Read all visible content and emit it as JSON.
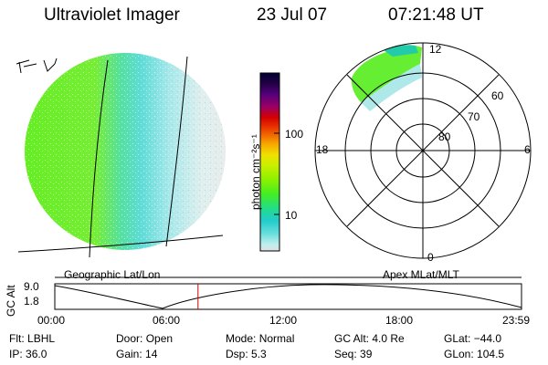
{
  "header": {
    "title": "Ultraviolet Imager",
    "date": "23 Jul 07",
    "time": "07:21:48 UT"
  },
  "left_panel": {
    "caption": "Geographic Lat/Lon",
    "annotation": "r. J"
  },
  "colorbar": {
    "unit_label": "photon cm⁻²s⁻¹",
    "ticks": [
      "100",
      "10"
    ],
    "colors": [
      "#000033",
      "#220044",
      "#55007a",
      "#9a0066",
      "#d40000",
      "#e83000",
      "#f06a00",
      "#f8a800",
      "#f0e000",
      "#c8f000",
      "#8cf000",
      "#44ee22",
      "#22dd88",
      "#22cccc",
      "#66dddd",
      "#bbeeee",
      "#e2e2e2"
    ]
  },
  "polar_panel": {
    "caption": "Apex MLat/MLT",
    "mlt_labels": {
      "top": "12",
      "bottom": "0",
      "left": "18",
      "right": "6"
    },
    "lat_labels": [
      "60",
      "70",
      "80"
    ]
  },
  "timeline": {
    "ylabel": "GC Alt",
    "y_ticks": [
      "9.0",
      "1.8"
    ],
    "x_ticks": [
      "00:00",
      "06:00",
      "12:00",
      "18:00",
      "23:59"
    ],
    "marker_time_hours": 7.36,
    "marker_color": "#cc0000"
  },
  "status": {
    "row1": [
      {
        "label": "Flt:",
        "value": "LBHL"
      },
      {
        "label": "Door:",
        "value": "Open"
      },
      {
        "label": "Mode:",
        "value": "Normal"
      },
      {
        "label": "GC Alt:",
        "value": "4.0 Re"
      },
      {
        "label": "GLat:",
        "value": "−44.0"
      }
    ],
    "row2": [
      {
        "label": "IP:",
        "value": "36.0"
      },
      {
        "label": "Gain:",
        "value": "14"
      },
      {
        "label": "Dsp:",
        "value": "5.3"
      },
      {
        "label": "Seq:",
        "value": "39"
      },
      {
        "label": "GLon:",
        "value": "104.5"
      }
    ]
  }
}
